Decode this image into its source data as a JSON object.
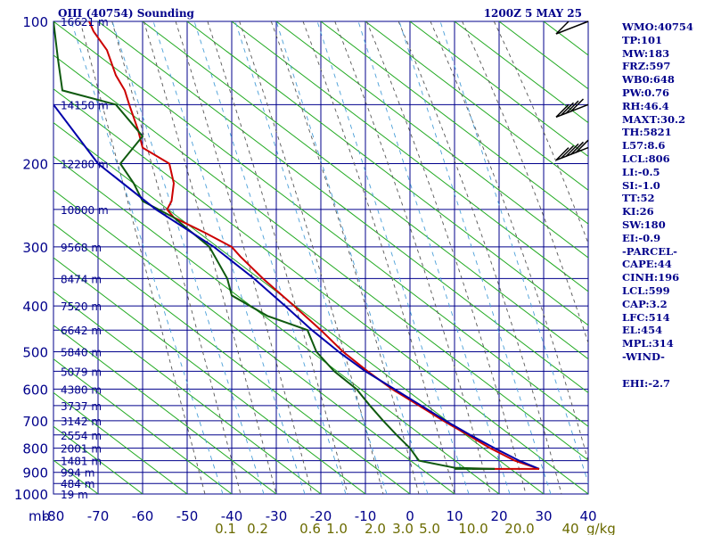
{
  "chart_data": {
    "type": "line",
    "title": "OIII (40754) Sounding",
    "valid_time": "1200Z  5 MAY 25",
    "x_axis": {
      "unit_label": "mb",
      "range": [
        -80,
        40
      ],
      "ticks": [
        -80,
        -70,
        -60,
        -50,
        -40,
        -30,
        -20,
        -10,
        0,
        10,
        20,
        30,
        40
      ],
      "tick_labels": [
        "-80",
        "-70",
        "-60",
        "-50",
        "-40",
        "-30",
        "-20",
        "-10",
        "0",
        "10",
        "20",
        "30",
        "40"
      ],
      "mixing_ratio_unit": "g/kg",
      "mixing_ratio_labels": [
        "0.1",
        "0.2",
        "0.6",
        "1.0",
        "2.0",
        "3.0",
        "5.0",
        "10.0",
        "20.0",
        "40"
      ]
    },
    "y_axis": {
      "scale": "log-pressure",
      "range": [
        1000,
        100
      ],
      "pressure_ticks": [
        100,
        200,
        300,
        400,
        500,
        600,
        700,
        800,
        900,
        1000
      ],
      "pressure_labels": [
        "100",
        "200",
        "300",
        "400",
        "500",
        "600",
        "700",
        "800",
        "900",
        "1000"
      ],
      "height_labels": [
        {
          "p": 100,
          "label": "16621 m"
        },
        {
          "p": 150,
          "label": "14150 m"
        },
        {
          "p": 200,
          "label": "12280 m"
        },
        {
          "p": 250,
          "label": "10800 m"
        },
        {
          "p": 300,
          "label": "9568 m"
        },
        {
          "p": 350,
          "label": "8474 m"
        },
        {
          "p": 400,
          "label": "7520 m"
        },
        {
          "p": 450,
          "label": "6642 m"
        },
        {
          "p": 500,
          "label": "5840 m"
        },
        {
          "p": 550,
          "label": "5079 m"
        },
        {
          "p": 600,
          "label": "4380 m"
        },
        {
          "p": 650,
          "label": "3737 m"
        },
        {
          "p": 700,
          "label": "3142 m"
        },
        {
          "p": 750,
          "label": "2554 m"
        },
        {
          "p": 800,
          "label": "2001 m"
        },
        {
          "p": 850,
          "label": "1481 m"
        },
        {
          "p": 900,
          "label": "994 m"
        },
        {
          "p": 950,
          "label": "484 m"
        },
        {
          "p": 1000,
          "label": "19 m"
        }
      ]
    },
    "grid": true,
    "series": [
      {
        "role": "temperature",
        "color": "#cc0000",
        "points": [
          {
            "p": 885,
            "t": 29
          },
          {
            "p": 850,
            "t": 23.5
          },
          {
            "p": 800,
            "t": 18
          },
          {
            "p": 750,
            "t": 13
          },
          {
            "p": 700,
            "t": 7.5
          },
          {
            "p": 650,
            "t": 2
          },
          {
            "p": 600,
            "t": -4
          },
          {
            "p": 550,
            "t": -9.5
          },
          {
            "p": 500,
            "t": -15
          },
          {
            "p": 450,
            "t": -20
          },
          {
            "p": 400,
            "t": -26
          },
          {
            "p": 350,
            "t": -33
          },
          {
            "p": 315,
            "t": -38
          },
          {
            "p": 300,
            "t": -40
          },
          {
            "p": 280,
            "t": -46
          },
          {
            "p": 260,
            "t": -53
          },
          {
            "p": 250,
            "t": -54.5
          },
          {
            "p": 240,
            "t": -53.5
          },
          {
            "p": 220,
            "t": -53
          },
          {
            "p": 200,
            "t": -54
          },
          {
            "p": 185,
            "t": -60
          },
          {
            "p": 170,
            "t": -61
          },
          {
            "p": 150,
            "t": -63
          },
          {
            "p": 140,
            "t": -64
          },
          {
            "p": 130,
            "t": -66
          },
          {
            "p": 115,
            "t": -68
          },
          {
            "p": 105,
            "t": -71
          },
          {
            "p": 100,
            "t": -72
          }
        ]
      },
      {
        "role": "dewpoint",
        "color": "#0f5a0f",
        "points": [
          {
            "p": 885,
            "t": 19
          },
          {
            "p": 880,
            "t": 10
          },
          {
            "p": 850,
            "t": 2
          },
          {
            "p": 800,
            "t": 0
          },
          {
            "p": 750,
            "t": -3
          },
          {
            "p": 700,
            "t": -6
          },
          {
            "p": 650,
            "t": -9
          },
          {
            "p": 600,
            "t": -12
          },
          {
            "p": 550,
            "t": -17
          },
          {
            "p": 500,
            "t": -21
          },
          {
            "p": 450,
            "t": -23
          },
          {
            "p": 420,
            "t": -32
          },
          {
            "p": 380,
            "t": -40
          },
          {
            "p": 350,
            "t": -41
          },
          {
            "p": 300,
            "t": -45
          },
          {
            "p": 260,
            "t": -53
          },
          {
            "p": 240,
            "t": -60
          },
          {
            "p": 220,
            "t": -62
          },
          {
            "p": 200,
            "t": -65
          },
          {
            "p": 175,
            "t": -60
          },
          {
            "p": 150,
            "t": -66
          },
          {
            "p": 140,
            "t": -78
          },
          {
            "p": 120,
            "t": -79
          },
          {
            "p": 100,
            "t": -80
          }
        ]
      },
      {
        "role": "parcel",
        "color": "#0000aa",
        "points": [
          {
            "p": 885,
            "t": 29
          },
          {
            "p": 850,
            "t": 24.5
          },
          {
            "p": 800,
            "t": 19
          },
          {
            "p": 750,
            "t": 13.5
          },
          {
            "p": 700,
            "t": 8
          },
          {
            "p": 650,
            "t": 2.5
          },
          {
            "p": 600,
            "t": -3.5
          },
          {
            "p": 550,
            "t": -10
          },
          {
            "p": 500,
            "t": -16
          },
          {
            "p": 450,
            "t": -22
          },
          {
            "p": 400,
            "t": -28
          },
          {
            "p": 350,
            "t": -35
          },
          {
            "p": 300,
            "t": -44
          },
          {
            "p": 250,
            "t": -57
          },
          {
            "p": 200,
            "t": -70
          },
          {
            "p": 150,
            "t": -80
          }
        ]
      }
    ],
    "extra_lines": [
      {
        "role": "surface",
        "color": "#cc0000",
        "points": [
          {
            "p": 885,
            "t": 14
          },
          {
            "p": 885,
            "t": 29
          }
        ]
      },
      {
        "role": "surface",
        "color": "#0f5a0f",
        "points": [
          {
            "p": 885,
            "t": 10
          },
          {
            "p": 885,
            "t": 19
          }
        ]
      }
    ],
    "wind_barbs": [
      {
        "p": 100,
        "flags": 0,
        "full": 1,
        "half": 0
      },
      {
        "p": 150,
        "flags": 0,
        "full": 4,
        "half": 1
      },
      {
        "p": 185,
        "flags": 0,
        "full": 5,
        "half": 0
      }
    ]
  },
  "indices": [
    "WMO:40754",
    "TP:101",
    "MW:183",
    "FRZ:597",
    "WB0:648",
    "PW:0.76",
    "RH:46.4",
    "MAXT:30.2",
    "TH:5821",
    "L57:8.6",
    "LCL:806",
    "LI:-0.5",
    "SI:-1.0",
    "TT:52",
    "KI:26",
    "SW:180",
    "EI:-0.9",
    "-PARCEL-",
    "CAPE:44",
    "CINH:196",
    "LCL:599",
    "CAP:3.2",
    "LFC:514",
    "EL:454",
    "MPL:314",
    "-WIND-",
    "",
    "EHI:-2.7"
  ],
  "colors": {
    "grid": "#00008b",
    "dry_adiabat": "#22aa22",
    "moist_adiabat": "#555555",
    "mixing_ratio": "#4a9fd8",
    "mixing_ratio_label": "#6b6b00"
  }
}
